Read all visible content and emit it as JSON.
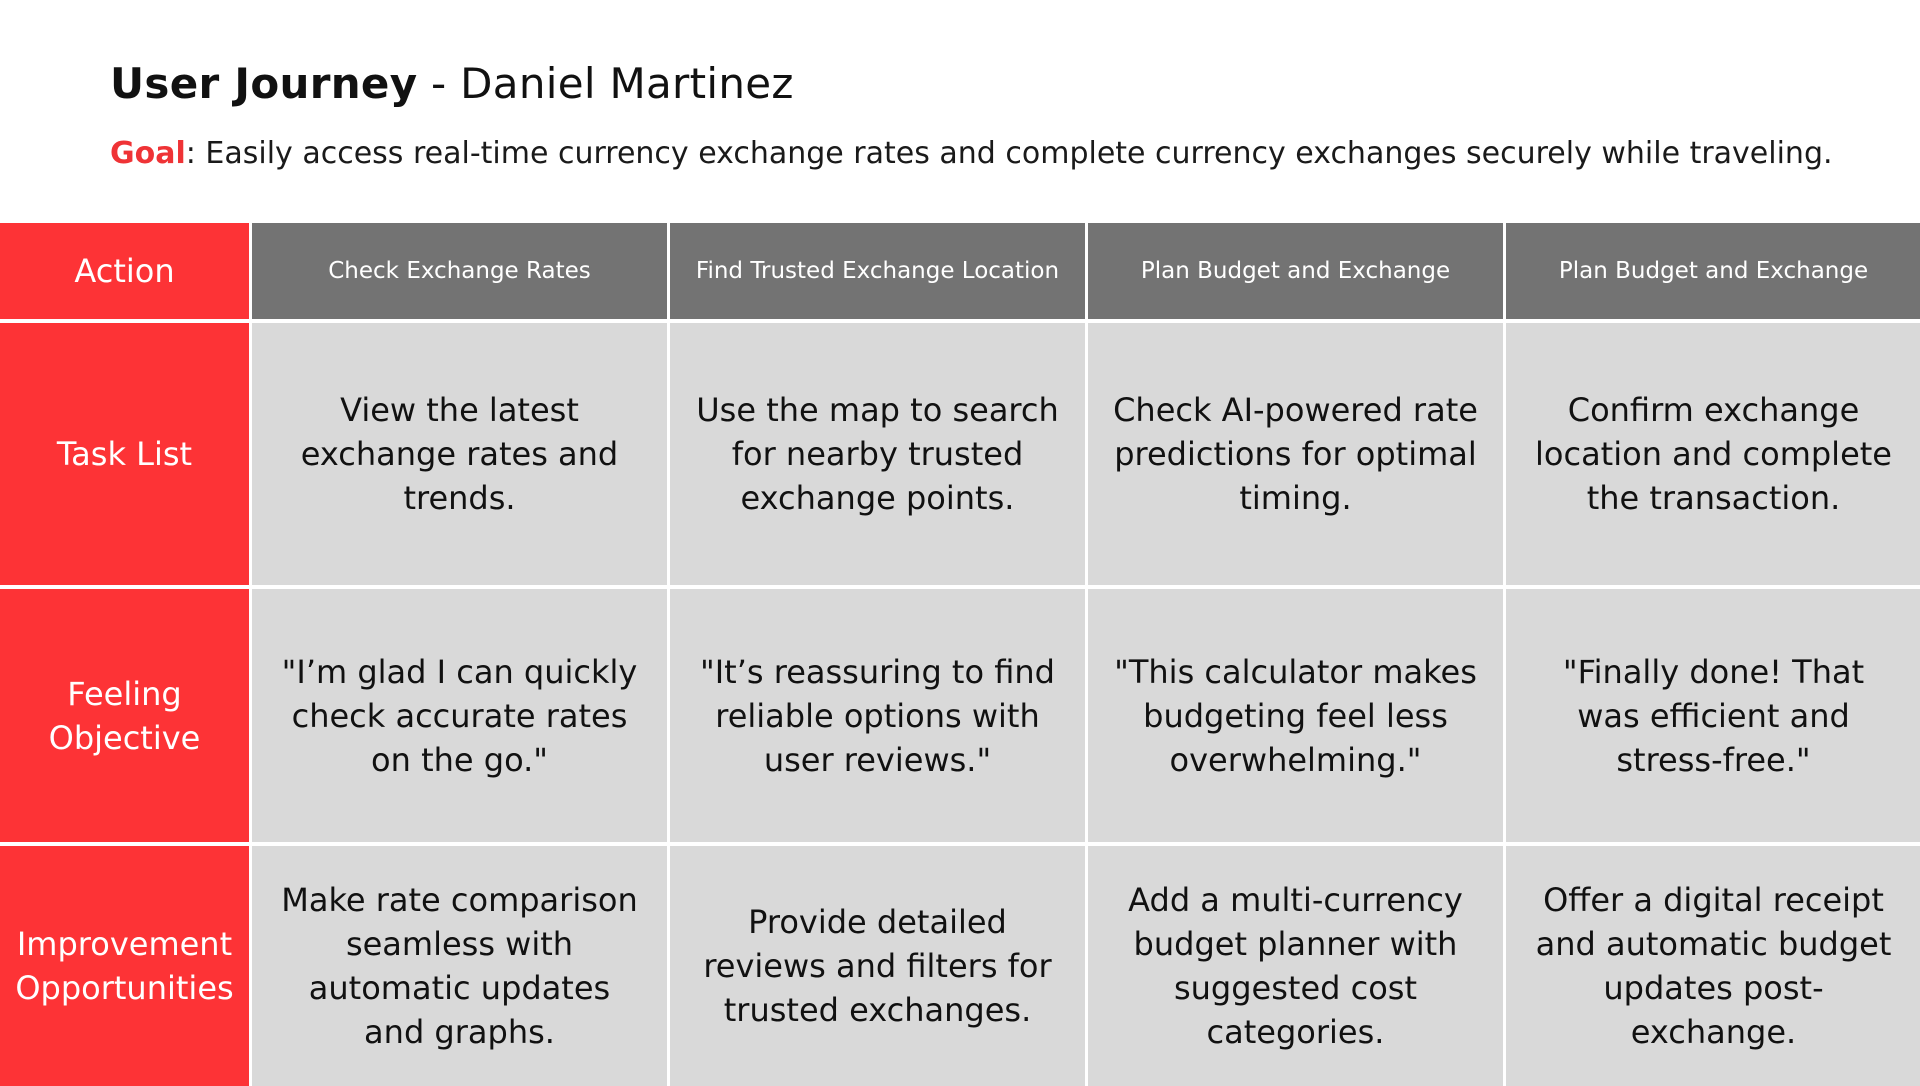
{
  "header": {
    "title_bold": "User Journey",
    "title_rest": " - Daniel Martinez",
    "goal_label": "Goal",
    "goal_text": ": Easily access real-time currency exchange rates and complete currency exchanges securely while traveling."
  },
  "row_labels": {
    "action": "Action",
    "task_list": "Task List",
    "feeling": "Feeling Objective",
    "improvement": "Improvement Opportunities"
  },
  "columns": [
    {
      "action": "Check Exchange Rates",
      "task": "View the latest exchange rates and trends.",
      "feeling": "\"I’m glad I can quickly check accurate rates on the go.\"",
      "improvement": "Make rate comparison seamless with automatic updates and graphs."
    },
    {
      "action": "Find Trusted Exchange Location",
      "task": "Use the map to search for nearby trusted exchange points.",
      "feeling": "\"It’s reassuring to find reliable options with user reviews.\"",
      "improvement": "Provide detailed reviews and filters for trusted exchanges."
    },
    {
      "action": "Plan Budget and Exchange",
      "task": "Check AI-powered rate predictions for optimal timing.",
      "feeling": "\"This calculator makes budgeting feel less overwhelming.\"",
      "improvement": "Add a multi-currency budget planner with suggested cost categories."
    },
    {
      "action": "Plan Budget and Exchange",
      "task": "Confirm exchange location and complete the transaction.",
      "feeling": "\"Finally done! That was efficient and stress-free.\"",
      "improvement": "Offer a digital receipt and automatic budget updates post-exchange."
    }
  ],
  "colors": {
    "accent_red": "#fd3336",
    "header_gray": "#737373",
    "cell_gray": "#d9d9d9",
    "goal_red": "#ef3336"
  }
}
